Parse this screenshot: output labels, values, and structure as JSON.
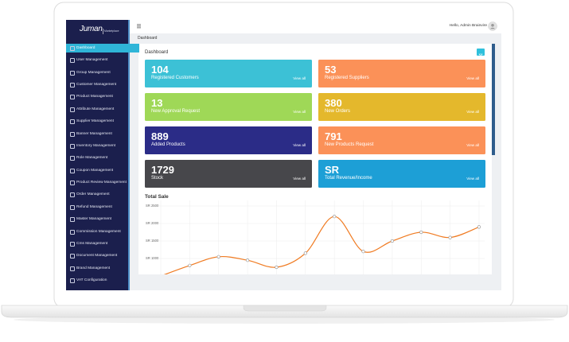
{
  "brand": {
    "name": "Juman",
    "tagline": "Marketplace"
  },
  "sidebar": {
    "items": [
      "Dashboard",
      "User Management",
      "Group Management",
      "Customer Management",
      "Product Management",
      "Attribute Management",
      "Supplier Management",
      "Banner Management",
      "Inventory Management",
      "Role Management",
      "Coupon Management",
      "Product Review Management",
      "Order Management",
      "Refund Management",
      "Master Management",
      "Commission Management",
      "Cms Management",
      "Document Management",
      "Brand Management",
      "VAT Configuration"
    ]
  },
  "topbar": {
    "greeting": "Hello, Admin Brainvire"
  },
  "breadcrumb": "Dashboard",
  "dashboard": {
    "title": "Dashboard",
    "view_all": "View all",
    "tiles": [
      {
        "number": 104,
        "label": "Registered Customers",
        "color": "#3cc1d6"
      },
      {
        "number": 53,
        "label": "Registered Suppliers",
        "color": "#fb9158"
      },
      {
        "number": 13,
        "label": "New Approval Request",
        "color": "#9fd857"
      },
      {
        "number": 380,
        "label": "New Orders",
        "color": "#e4b82c"
      },
      {
        "number": 889,
        "label": "Added Products",
        "color": "#2b2c87"
      },
      {
        "number": 791,
        "label": "New Products Request",
        "color": "#fb9158"
      },
      {
        "number": 1729,
        "label": "Stock",
        "color": "#47474b"
      },
      {
        "number": "SR",
        "label": "Total Revenue/Income",
        "color": "#1d9fd6"
      }
    ]
  },
  "total_sale": {
    "title": "Total Sale",
    "type": "line",
    "color": "#f07b22",
    "values": [
      500,
      800,
      1050,
      950,
      750,
      1150,
      2200,
      1200,
      1500,
      1750,
      1600,
      1900
    ],
    "ylim": [
      500,
      2600
    ],
    "yticks": [
      {
        "value": 2500,
        "label": "SR 2500"
      },
      {
        "value": 2000,
        "label": "SR 2000"
      },
      {
        "value": 1500,
        "label": "SR 1500"
      },
      {
        "value": 1000,
        "label": "SR 1000"
      }
    ],
    "grid": true
  }
}
